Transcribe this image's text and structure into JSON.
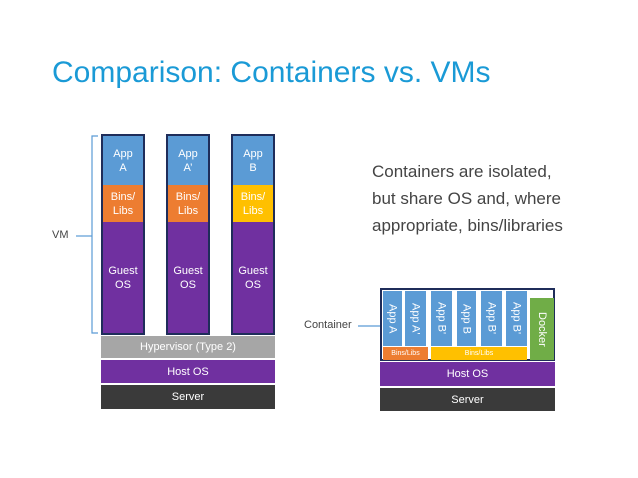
{
  "title": "Comparison: Containers vs. VMs",
  "vm": {
    "label": "VM",
    "columns": [
      {
        "app": "App A",
        "bins": "Bins/ Libs",
        "os": "Guest OS"
      },
      {
        "app": "App A’",
        "bins": "Bins/ Libs",
        "os": "Guest OS"
      },
      {
        "app": "App B",
        "bins": "Bins/ Libs",
        "os": "Guest OS"
      }
    ],
    "hypervisor": "Hypervisor (Type 2)",
    "host_os": "Host OS",
    "server": "Server"
  },
  "caption": [
    "Containers are isolated,",
    "but share OS and, where",
    "appropriate, bins/libraries"
  ],
  "container": {
    "label": "Container",
    "apps": [
      "App A",
      "App A'",
      "App B",
      "App B'",
      "App B'",
      "App B'"
    ],
    "bins": [
      "Bins/Libs",
      "Bins/Libs"
    ],
    "docker": "Docker",
    "host_os": "Host OS",
    "server": "Server"
  }
}
